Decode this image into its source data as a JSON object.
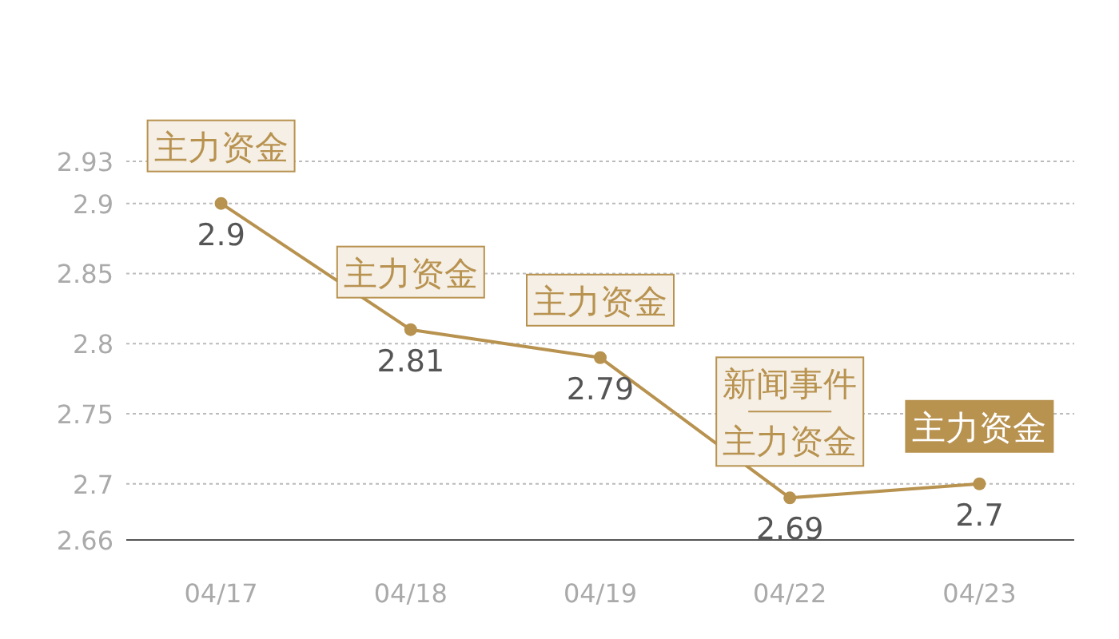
{
  "chart_data": {
    "type": "line",
    "categories": [
      "04/17",
      "04/18",
      "04/19",
      "04/22",
      "04/23"
    ],
    "series": [
      {
        "color": "#b8924f",
        "values": [
          2.9,
          2.81,
          2.79,
          2.69,
          2.7
        ]
      }
    ],
    "ylim": [
      2.66,
      2.93
    ],
    "yticks": [
      2.66,
      2.7,
      2.75,
      2.8,
      2.85,
      2.9,
      2.93
    ],
    "grid": "y",
    "marker": "circle",
    "data_labels": true,
    "annotations": [
      {
        "text": "主力资金",
        "x": "04/17",
        "y": 2.9
      },
      {
        "text": "主力资金",
        "x": "04/18",
        "y": 2.81
      },
      {
        "text": "主力资金",
        "x": "04/19",
        "y": 2.79
      },
      {
        "text": "新闻事件",
        "x": "04/22",
        "y": 2.69
      },
      {
        "text": "主力资金",
        "x": "04/22",
        "y": 2.69
      },
      {
        "text": "主力资金",
        "x": "04/23",
        "y": 2.7
      }
    ]
  }
}
